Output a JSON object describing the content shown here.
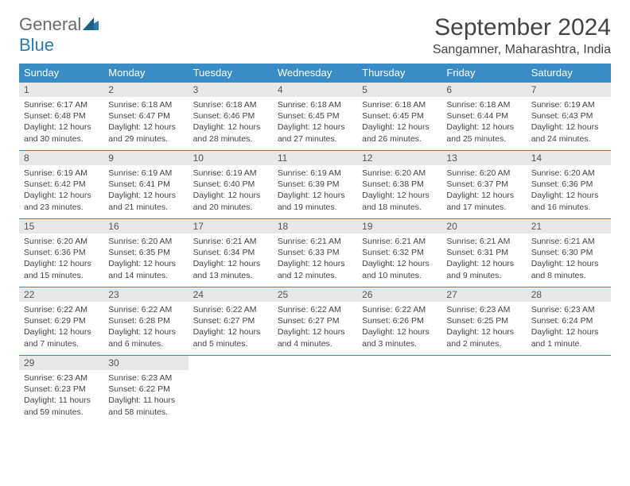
{
  "logo": {
    "text1": "General",
    "text2": "Blue"
  },
  "title": "September 2024",
  "location": "Sangamner, Maharashtra, India",
  "colors": {
    "header_bg": "#3b8bc4",
    "header_fg": "#ffffff",
    "daynum_bg": "#e8e8e8",
    "border": "#3b8bc4",
    "text": "#444444",
    "logo_gray": "#6a6a6a",
    "logo_blue": "#2a7ab0"
  },
  "weekdays": [
    "Sunday",
    "Monday",
    "Tuesday",
    "Wednesday",
    "Thursday",
    "Friday",
    "Saturday"
  ],
  "weeks": [
    [
      {
        "n": "1",
        "sr": "Sunrise: 6:17 AM",
        "ss": "Sunset: 6:48 PM",
        "dl": "Daylight: 12 hours and 30 minutes."
      },
      {
        "n": "2",
        "sr": "Sunrise: 6:18 AM",
        "ss": "Sunset: 6:47 PM",
        "dl": "Daylight: 12 hours and 29 minutes."
      },
      {
        "n": "3",
        "sr": "Sunrise: 6:18 AM",
        "ss": "Sunset: 6:46 PM",
        "dl": "Daylight: 12 hours and 28 minutes."
      },
      {
        "n": "4",
        "sr": "Sunrise: 6:18 AM",
        "ss": "Sunset: 6:45 PM",
        "dl": "Daylight: 12 hours and 27 minutes."
      },
      {
        "n": "5",
        "sr": "Sunrise: 6:18 AM",
        "ss": "Sunset: 6:45 PM",
        "dl": "Daylight: 12 hours and 26 minutes."
      },
      {
        "n": "6",
        "sr": "Sunrise: 6:18 AM",
        "ss": "Sunset: 6:44 PM",
        "dl": "Daylight: 12 hours and 25 minutes."
      },
      {
        "n": "7",
        "sr": "Sunrise: 6:19 AM",
        "ss": "Sunset: 6:43 PM",
        "dl": "Daylight: 12 hours and 24 minutes."
      }
    ],
    [
      {
        "n": "8",
        "sr": "Sunrise: 6:19 AM",
        "ss": "Sunset: 6:42 PM",
        "dl": "Daylight: 12 hours and 23 minutes."
      },
      {
        "n": "9",
        "sr": "Sunrise: 6:19 AM",
        "ss": "Sunset: 6:41 PM",
        "dl": "Daylight: 12 hours and 21 minutes."
      },
      {
        "n": "10",
        "sr": "Sunrise: 6:19 AM",
        "ss": "Sunset: 6:40 PM",
        "dl": "Daylight: 12 hours and 20 minutes."
      },
      {
        "n": "11",
        "sr": "Sunrise: 6:19 AM",
        "ss": "Sunset: 6:39 PM",
        "dl": "Daylight: 12 hours and 19 minutes."
      },
      {
        "n": "12",
        "sr": "Sunrise: 6:20 AM",
        "ss": "Sunset: 6:38 PM",
        "dl": "Daylight: 12 hours and 18 minutes."
      },
      {
        "n": "13",
        "sr": "Sunrise: 6:20 AM",
        "ss": "Sunset: 6:37 PM",
        "dl": "Daylight: 12 hours and 17 minutes."
      },
      {
        "n": "14",
        "sr": "Sunrise: 6:20 AM",
        "ss": "Sunset: 6:36 PM",
        "dl": "Daylight: 12 hours and 16 minutes."
      }
    ],
    [
      {
        "n": "15",
        "sr": "Sunrise: 6:20 AM",
        "ss": "Sunset: 6:36 PM",
        "dl": "Daylight: 12 hours and 15 minutes."
      },
      {
        "n": "16",
        "sr": "Sunrise: 6:20 AM",
        "ss": "Sunset: 6:35 PM",
        "dl": "Daylight: 12 hours and 14 minutes."
      },
      {
        "n": "17",
        "sr": "Sunrise: 6:21 AM",
        "ss": "Sunset: 6:34 PM",
        "dl": "Daylight: 12 hours and 13 minutes."
      },
      {
        "n": "18",
        "sr": "Sunrise: 6:21 AM",
        "ss": "Sunset: 6:33 PM",
        "dl": "Daylight: 12 hours and 12 minutes."
      },
      {
        "n": "19",
        "sr": "Sunrise: 6:21 AM",
        "ss": "Sunset: 6:32 PM",
        "dl": "Daylight: 12 hours and 10 minutes."
      },
      {
        "n": "20",
        "sr": "Sunrise: 6:21 AM",
        "ss": "Sunset: 6:31 PM",
        "dl": "Daylight: 12 hours and 9 minutes."
      },
      {
        "n": "21",
        "sr": "Sunrise: 6:21 AM",
        "ss": "Sunset: 6:30 PM",
        "dl": "Daylight: 12 hours and 8 minutes."
      }
    ],
    [
      {
        "n": "22",
        "sr": "Sunrise: 6:22 AM",
        "ss": "Sunset: 6:29 PM",
        "dl": "Daylight: 12 hours and 7 minutes."
      },
      {
        "n": "23",
        "sr": "Sunrise: 6:22 AM",
        "ss": "Sunset: 6:28 PM",
        "dl": "Daylight: 12 hours and 6 minutes."
      },
      {
        "n": "24",
        "sr": "Sunrise: 6:22 AM",
        "ss": "Sunset: 6:27 PM",
        "dl": "Daylight: 12 hours and 5 minutes."
      },
      {
        "n": "25",
        "sr": "Sunrise: 6:22 AM",
        "ss": "Sunset: 6:27 PM",
        "dl": "Daylight: 12 hours and 4 minutes."
      },
      {
        "n": "26",
        "sr": "Sunrise: 6:22 AM",
        "ss": "Sunset: 6:26 PM",
        "dl": "Daylight: 12 hours and 3 minutes."
      },
      {
        "n": "27",
        "sr": "Sunrise: 6:23 AM",
        "ss": "Sunset: 6:25 PM",
        "dl": "Daylight: 12 hours and 2 minutes."
      },
      {
        "n": "28",
        "sr": "Sunrise: 6:23 AM",
        "ss": "Sunset: 6:24 PM",
        "dl": "Daylight: 12 hours and 1 minute."
      }
    ],
    [
      {
        "n": "29",
        "sr": "Sunrise: 6:23 AM",
        "ss": "Sunset: 6:23 PM",
        "dl": "Daylight: 11 hours and 59 minutes."
      },
      {
        "n": "30",
        "sr": "Sunrise: 6:23 AM",
        "ss": "Sunset: 6:22 PM",
        "dl": "Daylight: 11 hours and 58 minutes."
      },
      null,
      null,
      null,
      null,
      null
    ]
  ]
}
